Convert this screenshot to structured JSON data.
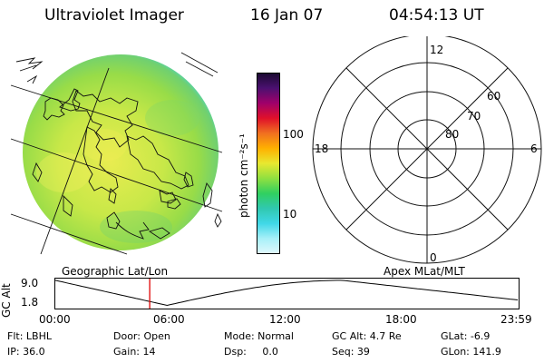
{
  "header": {
    "title": "Ultraviolet Imager",
    "date": "16 Jan 07",
    "time": "04:54:13 UT"
  },
  "colorbar": {
    "label": "photon cm⁻²s⁻¹",
    "ticks": [
      {
        "value": 100,
        "label": "100"
      },
      {
        "value": 10,
        "label": "10"
      }
    ],
    "scale": "log",
    "colors": [
      "#1a0a30",
      "#4b1070",
      "#a0006a",
      "#e0102a",
      "#f07020",
      "#ffb000",
      "#e8e830",
      "#90e040",
      "#30d060",
      "#30c8b0",
      "#40d8e8",
      "#a8f0f8",
      "#e0f8fc"
    ]
  },
  "polar_plot": {
    "lat_labels": [
      "80",
      "70",
      "60"
    ],
    "mlt_labels": {
      "top": "12",
      "bottom": "0",
      "left": "18",
      "right": "6"
    }
  },
  "frame_labels": {
    "left": "Geographic Lat/Lon",
    "right": "Apex MLat/MLT"
  },
  "altitude_plot": {
    "ylabel": "GC Alt",
    "ytick_top": "9.0",
    "ytick_bottom": "1.8",
    "xticks": [
      "00:00",
      "06:00",
      "12:00",
      "18:00",
      "23:59"
    ],
    "current_time_hours": 4.9
  },
  "footer": {
    "filter": "Flt: LBHL",
    "door": "Door: Open",
    "mode": "Mode: Normal",
    "gc_alt": "GC Alt: 4.7 Re",
    "glat": "GLat:  -6.9",
    "ip": "IP: 36.0",
    "gain": "Gain: 14",
    "dsp": "Dsp:     0.0",
    "seq": "Seq: 39",
    "glon": "GLon: 141.9"
  },
  "colors": {
    "disk_main": "#b0e040",
    "disk_bright": "#e8ec50",
    "disk_edge": "#40d8e0",
    "time_marker": "#e00000"
  }
}
